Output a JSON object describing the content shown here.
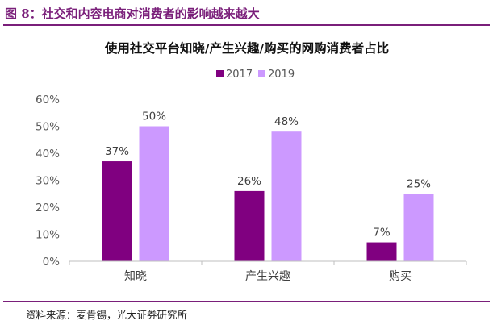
{
  "figure": {
    "title": "图 8：社交和内容电商对消费者的影响越来越大",
    "source": "资料来源：麦肯锡，光大证券研究所"
  },
  "colors": {
    "frame": "#7a1f7a",
    "series_2017": "#800080",
    "series_2019": "#cc99ff"
  },
  "chart_data": {
    "type": "bar",
    "title": "使用社交平台知晓/产生兴趣/购买的网购消费者占比",
    "categories": [
      "知晓",
      "产生兴趣",
      "购买"
    ],
    "series": [
      {
        "name": "2017",
        "values": [
          37,
          26,
          7
        ],
        "labels": [
          "37%",
          "26%",
          "7%"
        ]
      },
      {
        "name": "2019",
        "values": [
          50,
          48,
          25
        ],
        "labels": [
          "50%",
          "48%",
          "25%"
        ]
      }
    ],
    "ylim": [
      0,
      60
    ],
    "yticks": [
      "0%",
      "10%",
      "20%",
      "30%",
      "40%",
      "50%",
      "60%"
    ],
    "legend": "top-center",
    "grid": false
  }
}
